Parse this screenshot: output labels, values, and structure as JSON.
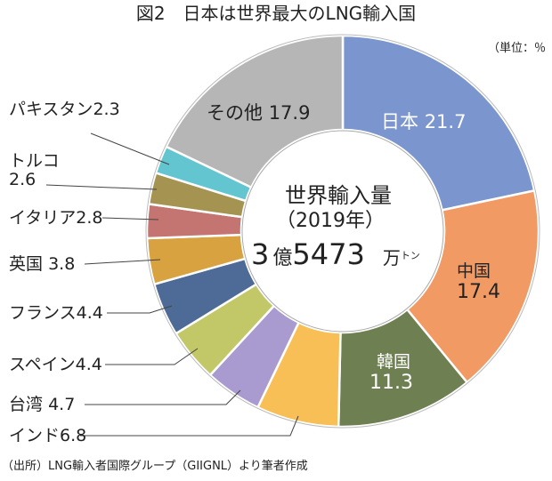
{
  "chart_data": {
    "type": "pie",
    "style": "donut",
    "title": "図2　日本は世界最大のLNG輸入国",
    "unit": "（単位：％",
    "center_text": {
      "line1": "世界輸入量",
      "line2": "（2019年）",
      "num1": "3",
      "oku": "億",
      "num2": "5473",
      "man": "万",
      "ton": "トン"
    },
    "source": "（出所）LNG輸入者国際グループ（GIIGNL）より筆者作成",
    "slices": [
      {
        "name": "日本",
        "value": 21.7,
        "color": "#7b96cf"
      },
      {
        "name": "中国",
        "value": 17.4,
        "color": "#f19a63"
      },
      {
        "name": "韓国",
        "value": 11.3,
        "color": "#6e7f52"
      },
      {
        "name": "インド",
        "value": 6.8,
        "color": "#f7bf55"
      },
      {
        "name": "台湾",
        "value": 4.7,
        "color": "#a99ad0"
      },
      {
        "name": "スペイン",
        "value": 4.4,
        "color": "#c2c868"
      },
      {
        "name": "フランス",
        "value": 4.4,
        "color": "#4d6b96"
      },
      {
        "name": "英国",
        "value": 3.8,
        "color": "#d7a23f"
      },
      {
        "name": "イタリア",
        "value": 2.8,
        "color": "#c47572"
      },
      {
        "name": "トルコ",
        "value": 2.6,
        "color": "#a59352"
      },
      {
        "name": "パキスタン",
        "value": 2.3,
        "color": "#62c5cf"
      },
      {
        "name": "その他",
        "value": 17.9,
        "color": "#b6b6b6"
      }
    ]
  }
}
